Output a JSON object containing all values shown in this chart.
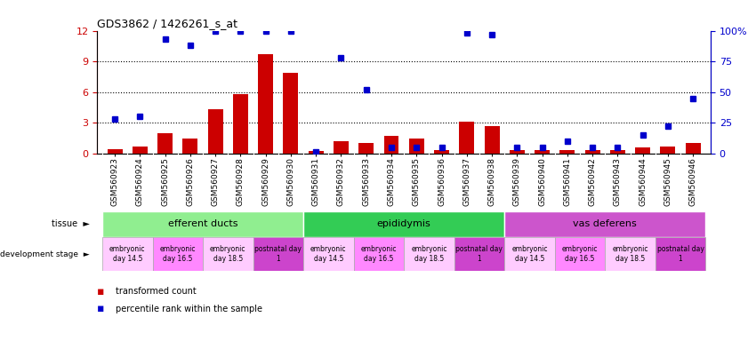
{
  "title": "GDS3862 / 1426261_s_at",
  "samples": [
    "GSM560923",
    "GSM560924",
    "GSM560925",
    "GSM560926",
    "GSM560927",
    "GSM560928",
    "GSM560929",
    "GSM560930",
    "GSM560931",
    "GSM560932",
    "GSM560933",
    "GSM560934",
    "GSM560935",
    "GSM560936",
    "GSM560937",
    "GSM560938",
    "GSM560939",
    "GSM560940",
    "GSM560941",
    "GSM560942",
    "GSM560943",
    "GSM560944",
    "GSM560945",
    "GSM560946"
  ],
  "transformed_count": [
    0.4,
    0.7,
    2.0,
    1.5,
    4.3,
    5.8,
    9.7,
    7.9,
    0.2,
    1.2,
    1.0,
    1.7,
    1.5,
    0.3,
    3.1,
    2.7,
    0.3,
    0.3,
    0.3,
    0.3,
    0.3,
    0.6,
    0.7,
    1.0
  ],
  "percentile_rank": [
    28,
    30,
    93,
    88,
    100,
    100,
    100,
    100,
    1,
    78,
    52,
    5,
    5,
    5,
    98,
    97,
    5,
    5,
    10,
    5,
    5,
    15,
    22,
    45
  ],
  "ylim_left": [
    0,
    12
  ],
  "ylim_right": [
    0,
    100
  ],
  "yticks_left": [
    0,
    3,
    6,
    9,
    12
  ],
  "yticks_right": [
    0,
    25,
    50,
    75,
    100
  ],
  "bar_color": "#cc0000",
  "dot_color": "#0000cc",
  "left_axis_color": "#cc0000",
  "right_axis_color": "#0000cc",
  "tissue_groups": [
    {
      "label": "efferent ducts",
      "start": 0,
      "end": 7,
      "color": "#90ee90"
    },
    {
      "label": "epididymis",
      "start": 8,
      "end": 15,
      "color": "#33cc55"
    },
    {
      "label": "vas deferens",
      "start": 16,
      "end": 23,
      "color": "#cc55cc"
    }
  ],
  "dev_stage_groups": [
    {
      "label": "embryonic\nday 14.5",
      "start": 0,
      "end": 1,
      "color": "#ffccff"
    },
    {
      "label": "embryonic\nday 16.5",
      "start": 2,
      "end": 3,
      "color": "#ff99ff"
    },
    {
      "label": "embryonic\nday 18.5",
      "start": 4,
      "end": 5,
      "color": "#ffccff"
    },
    {
      "label": "postnatal day\n1",
      "start": 6,
      "end": 7,
      "color": "#cc44cc"
    },
    {
      "label": "embryonic\nday 14.5",
      "start": 8,
      "end": 9,
      "color": "#ffccff"
    },
    {
      "label": "embryonic\nday 16.5",
      "start": 10,
      "end": 11,
      "color": "#ff99ff"
    },
    {
      "label": "embryonic\nday 18.5",
      "start": 12,
      "end": 13,
      "color": "#ffccff"
    },
    {
      "label": "postnatal day\n1",
      "start": 14,
      "end": 15,
      "color": "#cc44cc"
    },
    {
      "label": "embryonic\nday 14.5",
      "start": 16,
      "end": 17,
      "color": "#ffccff"
    },
    {
      "label": "embryonic\nday 16.5",
      "start": 18,
      "end": 19,
      "color": "#ff99ff"
    },
    {
      "label": "embryonic\nday 18.5",
      "start": 20,
      "end": 21,
      "color": "#ffccff"
    },
    {
      "label": "postnatal day\n1",
      "start": 22,
      "end": 23,
      "color": "#cc44cc"
    }
  ],
  "legend_items": [
    {
      "label": "transformed count",
      "color": "#cc0000"
    },
    {
      "label": "percentile rank within the sample",
      "color": "#0000cc"
    }
  ],
  "xticklabel_bg_color": "#d0d0d0"
}
